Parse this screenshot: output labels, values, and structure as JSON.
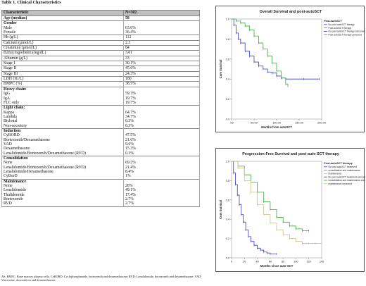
{
  "table": {
    "title": "Table 1. Clinical Characteristics",
    "header": [
      "Characteristic",
      "N=302"
    ],
    "rows": [
      {
        "label": "Age (median)",
        "value": "58",
        "style": "sec"
      },
      {
        "label": "Gender",
        "value": "",
        "style": "sec"
      },
      {
        "label": "Male",
        "value": "63.6%",
        "style": ""
      },
      {
        "label": "Female",
        "value": "36.4%",
        "style": ""
      },
      {
        "label": "Hb (g/L)",
        "value": "112",
        "style": "line"
      },
      {
        "label": "Calcium (µmol/L)",
        "value": "2.3",
        "style": "line"
      },
      {
        "label": "Creatinine (µmol/L)",
        "value": "84",
        "style": "line"
      },
      {
        "label": "B2microglobulin (mg/dL)",
        "value": "3.01",
        "style": "line"
      },
      {
        "label": "Albumin (g/L)",
        "value": "33",
        "style": "line"
      },
      {
        "label": "Stage I",
        "value": "30.1%",
        "style": "line"
      },
      {
        "label": "Stage II",
        "value": "45.6%",
        "style": "line"
      },
      {
        "label": "Stage III",
        "value": "24.3%",
        "style": "line"
      },
      {
        "label": "LDH (IU/L)",
        "value": "180",
        "style": "line"
      },
      {
        "label": "BMPC (%)",
        "value": "38.5%",
        "style": "line"
      },
      {
        "label": "Heavy chain:",
        "value": "",
        "style": "sec"
      },
      {
        "label": "IgG",
        "value": "59.3%",
        "style": ""
      },
      {
        "label": "IgA",
        "value": "19.7%",
        "style": ""
      },
      {
        "label": "FLC only",
        "value": "19.7%",
        "style": ""
      },
      {
        "label": "Light chain:",
        "value": "",
        "style": "sec"
      },
      {
        "label": "Kappa",
        "value": "64.7%",
        "style": ""
      },
      {
        "label": "Lambda",
        "value": "34.7%",
        "style": ""
      },
      {
        "label": "Biclonal",
        "value": "0.3%",
        "style": ""
      },
      {
        "label": "Non-secretory",
        "value": "0.3%",
        "style": ""
      },
      {
        "label": "Induction",
        "value": "",
        "style": "sec"
      },
      {
        "label": "CyBORD",
        "value": "47.5%",
        "style": ""
      },
      {
        "label": "Bortezomib/Dexamethasone",
        "value": "21.6%",
        "style": ""
      },
      {
        "label": "VAD",
        "value": "9.6%",
        "style": ""
      },
      {
        "label": "Dexamethasone",
        "value": "15.3%",
        "style": ""
      },
      {
        "label": "Lenalidomide/Bortezomib/Dexamethasone (RVD)",
        "value": "0.3%",
        "style": ""
      },
      {
        "label": "Consolidation",
        "value": "",
        "style": "sec"
      },
      {
        "label": "None",
        "value": "69.2%",
        "style": ""
      },
      {
        "label": "Lenalidomide/Bortezomib/Dexamethasone (RVD)",
        "value": "21.4%",
        "style": ""
      },
      {
        "label": "Lenalidomide/Dexamethasone",
        "value": "8.4%",
        "style": ""
      },
      {
        "label": "CyBorD",
        "value": "1%",
        "style": ""
      },
      {
        "label": "Maintenance",
        "value": "",
        "style": "sec"
      },
      {
        "label": "None",
        "value": "28%",
        "style": ""
      },
      {
        "label": "Lenalidomide",
        "value": "49.1%",
        "style": ""
      },
      {
        "label": "Thalidomide",
        "value": "17.4%",
        "style": ""
      },
      {
        "label": "Bortezomib",
        "value": "2.7%",
        "style": ""
      },
      {
        "label": "RVD",
        "value": "2.7%",
        "style": ""
      }
    ]
  },
  "footnote": "Ab: BMPC: Bone marrow plasma cells; CyBORD: Cyclophosphamide, bortezomib and dexamethasone; RVD: Lenalidomide, bortezomib and dexamethasone; VAD: Vincristine, doxorubicin and dexamethasone.",
  "chart_data": [
    {
      "type": "line",
      "title": "Overall Survival and post-autoSCT",
      "xlabel": "Months from autoSCT",
      "ylabel": "Cum Survival",
      "xlim": [
        0,
        200
      ],
      "ylim": [
        0,
        1
      ],
      "x_ticks": [
        ".00",
        "50.00",
        "100.00",
        "150.00",
        "200.00"
      ],
      "y_ticks": [
        "0.0",
        "0.2",
        "0.4",
        "0.6",
        "0.8",
        "1.0"
      ],
      "legend_title": "Post-autoSCT",
      "legend": [
        "No post-autoSCT therapy",
        "Post-autoSCT therapy",
        "No post-autoSCT therapy-censored",
        "Post-autoSCT therapy-censored"
      ],
      "colors": [
        "#3a3fb8",
        "#3aa83a"
      ],
      "series": [
        {
          "name": "No post-autoSCT therapy",
          "x": [
            0,
            5,
            10,
            15,
            20,
            30,
            40,
            50,
            60,
            70,
            80,
            90,
            100,
            110,
            120,
            160,
            195
          ],
          "y": [
            1.0,
            0.94,
            0.86,
            0.8,
            0.76,
            0.68,
            0.63,
            0.57,
            0.53,
            0.5,
            0.47,
            0.46,
            0.43,
            0.41,
            0.4,
            0.4,
            0.4
          ]
        },
        {
          "name": "Post-autoSCT therapy",
          "x": [
            0,
            10,
            20,
            30,
            40,
            50,
            60,
            70,
            80,
            90,
            100,
            110,
            120,
            125
          ],
          "y": [
            1.0,
            0.98,
            0.96,
            0.93,
            0.89,
            0.83,
            0.76,
            0.7,
            0.63,
            0.56,
            0.48,
            0.41,
            0.35,
            0.33
          ]
        }
      ]
    },
    {
      "type": "line",
      "title": "Progression-Free Survival and post-auto SCT therapy",
      "xlabel": "Months since auto-SCT",
      "ylabel": "Cum Survival",
      "xlim": [
        0,
        140
      ],
      "ylim": [
        0,
        1
      ],
      "x_ticks": [
        "0",
        "20",
        "40",
        "60",
        "80",
        "100",
        "120",
        "140"
      ],
      "y_ticks": [
        "0.0",
        "0.2",
        "0.4",
        "0.6",
        "0.8",
        "1.0"
      ],
      "legend_title": "Post-autoSCT therapy",
      "legend": [
        "No post-autoSCT treatment",
        "consolidation and maintenance",
        "maintenance",
        "No post-autoSCT treatment-censored",
        "consolidation and maintenance-censored",
        "maintenance-censored"
      ],
      "colors": [
        "#3a3fb8",
        "#3aa83a",
        "#c8c089"
      ],
      "series": [
        {
          "name": "No post-autoSCT treatment",
          "x": [
            0,
            3,
            6,
            9,
            12,
            15,
            18,
            22,
            26,
            30,
            35,
            40,
            45,
            50,
            55,
            60,
            70
          ],
          "y": [
            1.0,
            0.88,
            0.76,
            0.65,
            0.55,
            0.45,
            0.37,
            0.29,
            0.22,
            0.17,
            0.13,
            0.1,
            0.08,
            0.06,
            0.05,
            0.04,
            0.04
          ]
        },
        {
          "name": "consolidation and maintenance",
          "x": [
            0,
            10,
            20,
            30,
            40,
            50,
            60,
            70,
            80,
            90,
            100,
            110,
            120
          ],
          "y": [
            1.0,
            0.95,
            0.86,
            0.78,
            0.68,
            0.58,
            0.5,
            0.42,
            0.37,
            0.33,
            0.3,
            0.28,
            0.28
          ]
        },
        {
          "name": "maintenance",
          "x": [
            0,
            10,
            20,
            30,
            40,
            50,
            60,
            70,
            80,
            90,
            100,
            110,
            120,
            130,
            140
          ],
          "y": [
            1.0,
            0.93,
            0.8,
            0.68,
            0.55,
            0.45,
            0.36,
            0.29,
            0.24,
            0.2,
            0.17,
            0.15,
            0.15,
            0.15,
            0.15
          ]
        }
      ]
    }
  ]
}
